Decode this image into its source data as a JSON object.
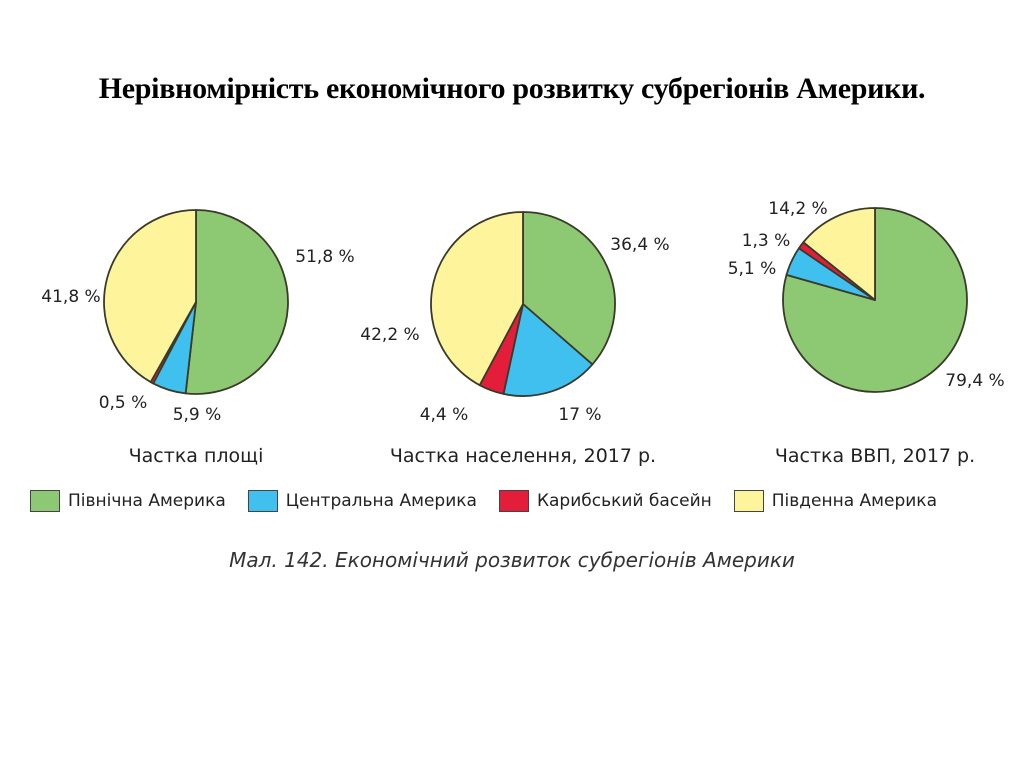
{
  "title": "Нерівномірність економічного розвитку субрегіонів Америки.",
  "colors": {
    "north": "#8dc973",
    "central": "#3fc0ee",
    "caribbean": "#e41e3a",
    "south": "#fdf49c",
    "outline": "#3a3a2a"
  },
  "legend": [
    {
      "key": "north",
      "label": "Північна Америка"
    },
    {
      "key": "central",
      "label": "Центральна Америка"
    },
    {
      "key": "caribbean",
      "label": "Карибський басейн"
    },
    {
      "key": "south",
      "label": "Південна Америка"
    }
  ],
  "figure_caption": "Мал. 142. Економічний розвиток субрегіонів Америки",
  "chart_data": [
    {
      "type": "pie",
      "title": "Частка площі",
      "categories": [
        "Північна Америка",
        "Центральна Америка",
        "Карибський басейн",
        "Південна Америка"
      ],
      "values": [
        51.8,
        5.9,
        0.5,
        41.8
      ],
      "labels": [
        "51,8 %",
        "5,9 %",
        "0,5 %",
        "41,8 %"
      ],
      "start": "top",
      "direction": "clockwise"
    },
    {
      "type": "pie",
      "title": "Частка населення, 2017 р.",
      "categories": [
        "Північна Америка",
        "Центральна Америка",
        "Карибський басейн",
        "Південна Америка"
      ],
      "values": [
        36.4,
        17,
        4.4,
        42.2
      ],
      "labels": [
        "36,4 %",
        "17 %",
        "4,4 %",
        "42,2 %"
      ],
      "start": "top",
      "direction": "clockwise"
    },
    {
      "type": "pie",
      "title": "Частка ВВП, 2017 р.",
      "categories": [
        "Північна Америка",
        "Центральна Америка",
        "Карибський басейн",
        "Південна Америка"
      ],
      "values": [
        79.4,
        5.1,
        1.3,
        14.2
      ],
      "labels": [
        "79,4 %",
        "5,1 %",
        "1,3 %",
        "14,2 %"
      ],
      "start": "top",
      "direction": "clockwise"
    }
  ]
}
